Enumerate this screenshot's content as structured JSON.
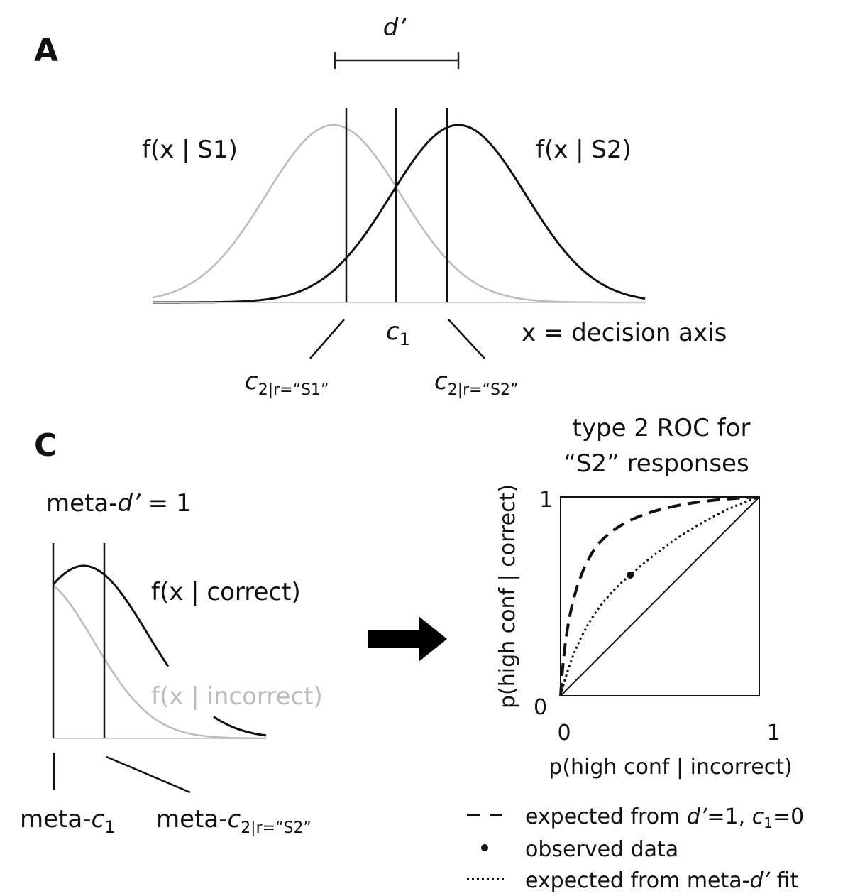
{
  "panel_a": {
    "label": "A",
    "d_prime": "d’",
    "f_s1": "f(x | S1)",
    "f_s2": "f(x | S2)",
    "c1": {
      "base": "c",
      "sub": "1"
    },
    "decision_axis": "x = decision axis",
    "c2_s1": {
      "base": "c",
      "sub": "2|r=“S1”"
    },
    "c2_s2": {
      "base": "c",
      "sub": "2|r=“S2”"
    }
  },
  "panel_c": {
    "label": "C",
    "meta_d": [
      "meta-",
      "d’",
      " = 1"
    ],
    "f_correct": "f(x | correct)",
    "f_incorrect": "f(x | incorrect)",
    "meta_c1": {
      "base": "meta-",
      "italic": "c",
      "sub": "1"
    },
    "meta_c2": {
      "base": "meta-",
      "italic": "c",
      "sub": "2|r=“S2”"
    },
    "roc": {
      "title": [
        "type 2 ROC for",
        "“S2” responses"
      ],
      "y_label": "p(high conf | correct)",
      "x_label": "p(high conf | incorrect)",
      "y_ticks": [
        "1",
        "0"
      ],
      "x_ticks": [
        "0",
        "1"
      ]
    },
    "legend": {
      "expected": [
        "expected from ",
        "d’",
        "=1, ",
        "c",
        "1",
        "=0"
      ],
      "observed": "observed data",
      "meta_fit": [
        "expected from meta-",
        "d’",
        " fit"
      ]
    }
  }
}
